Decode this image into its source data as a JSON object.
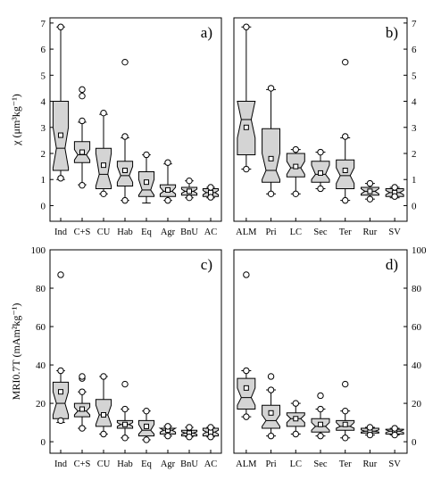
{
  "chart_data": [
    {
      "type": "box",
      "panel_label": "a)",
      "ylabel": "χ (μm³kg⁻¹)",
      "ylim": [
        -0.6,
        7.2
      ],
      "yticks": [
        0,
        1,
        2,
        3,
        4,
        5,
        6,
        7
      ],
      "categories": [
        "Ind",
        "C+S",
        "CU",
        "Hab",
        "Eq",
        "Agr",
        "BnU",
        "AC"
      ],
      "boxes": [
        {
          "q1": 1.35,
          "median": 2.2,
          "q3": 4.0,
          "mean": 2.7,
          "notch_lo": 1.45,
          "notch_hi": 3.0,
          "whisker_lo": 1.0,
          "whisker_hi": 6.85,
          "outliers": [
            1.05,
            6.85
          ]
        },
        {
          "q1": 1.65,
          "median": 1.95,
          "q3": 2.45,
          "mean": 2.05,
          "notch_lo": 1.75,
          "notch_hi": 2.15,
          "whisker_lo": 0.8,
          "whisker_hi": 3.2,
          "outliers": [
            0.78,
            3.25,
            4.2,
            4.45
          ]
        },
        {
          "q1": 0.65,
          "median": 1.2,
          "q3": 2.2,
          "mean": 1.55,
          "notch_lo": 0.75,
          "notch_hi": 2.0,
          "whisker_lo": 0.45,
          "whisker_hi": 3.5,
          "outliers": [
            0.45,
            3.55
          ]
        },
        {
          "q1": 0.75,
          "median": 1.15,
          "q3": 1.7,
          "mean": 1.35,
          "notch_lo": 0.9,
          "notch_hi": 1.5,
          "whisker_lo": 0.2,
          "whisker_hi": 2.6,
          "outliers": [
            0.2,
            2.65,
            5.5
          ]
        },
        {
          "q1": 0.35,
          "median": 0.6,
          "q3": 1.3,
          "mean": 0.9,
          "notch_lo": 0.4,
          "notch_hi": 1.0,
          "whisker_lo": 0.1,
          "whisker_hi": 1.95,
          "outliers": [
            1.95
          ]
        },
        {
          "q1": 0.35,
          "median": 0.55,
          "q3": 0.8,
          "mean": 0.6,
          "notch_lo": 0.45,
          "notch_hi": 0.7,
          "whisker_lo": 0.2,
          "whisker_hi": 1.6,
          "outliers": [
            1.65,
            0.2
          ]
        },
        {
          "q1": 0.4,
          "median": 0.55,
          "q3": 0.7,
          "mean": 0.55,
          "notch_lo": 0.47,
          "notch_hi": 0.63,
          "whisker_lo": 0.3,
          "whisker_hi": 0.95,
          "outliers": [
            0.95,
            0.3
          ]
        },
        {
          "q1": 0.35,
          "median": 0.5,
          "q3": 0.65,
          "mean": 0.5,
          "notch_lo": 0.42,
          "notch_hi": 0.58,
          "whisker_lo": 0.3,
          "whisker_hi": 0.7,
          "outliers": [
            0.7,
            0.32
          ]
        }
      ]
    },
    {
      "type": "box",
      "panel_label": "b)",
      "ylim": [
        -0.6,
        7.2
      ],
      "yticks": [
        0,
        1,
        2,
        3,
        4,
        5,
        6,
        7
      ],
      "categories": [
        "ALM",
        "Pri",
        "LC",
        "Sec",
        "Ter",
        "Rur",
        "SV"
      ],
      "boxes": [
        {
          "q1": 1.95,
          "median": 3.3,
          "q3": 4.0,
          "mean": 3.0,
          "notch_lo": 2.6,
          "notch_hi": 4.0,
          "whisker_lo": 1.4,
          "whisker_hi": 6.85,
          "outliers": [
            1.4,
            6.85
          ]
        },
        {
          "q1": 0.9,
          "median": 1.35,
          "q3": 2.95,
          "mean": 1.8,
          "notch_lo": 1.0,
          "notch_hi": 2.0,
          "whisker_lo": 0.45,
          "whisker_hi": 4.45,
          "outliers": [
            0.45,
            4.5
          ]
        },
        {
          "q1": 1.1,
          "median": 1.45,
          "q3": 2.0,
          "mean": 1.5,
          "notch_lo": 1.2,
          "notch_hi": 1.7,
          "whisker_lo": 0.45,
          "whisker_hi": 2.15,
          "outliers": [
            0.45,
            2.15
          ]
        },
        {
          "q1": 0.9,
          "median": 1.2,
          "q3": 1.7,
          "mean": 1.25,
          "notch_lo": 1.0,
          "notch_hi": 1.55,
          "whisker_lo": 0.65,
          "whisker_hi": 2.05,
          "outliers": [
            0.65,
            2.05
          ]
        },
        {
          "q1": 0.65,
          "median": 1.15,
          "q3": 1.75,
          "mean": 1.35,
          "notch_lo": 0.85,
          "notch_hi": 1.45,
          "whisker_lo": 0.2,
          "whisker_hi": 2.6,
          "outliers": [
            0.2,
            2.65,
            5.5
          ]
        },
        {
          "q1": 0.4,
          "median": 0.55,
          "q3": 0.7,
          "mean": 0.55,
          "notch_lo": 0.45,
          "notch_hi": 0.65,
          "whisker_lo": 0.25,
          "whisker_hi": 0.85,
          "outliers": [
            0.85,
            0.25
          ]
        },
        {
          "q1": 0.35,
          "median": 0.5,
          "q3": 0.65,
          "mean": 0.5,
          "notch_lo": 0.42,
          "notch_hi": 0.58,
          "whisker_lo": 0.3,
          "whisker_hi": 0.7,
          "outliers": [
            0.7,
            0.35
          ]
        }
      ]
    },
    {
      "type": "box",
      "panel_label": "c)",
      "ylabel": "MRI0.7T (mAm²kg⁻¹)",
      "ylim": [
        -6,
        100
      ],
      "yticks": [
        0,
        20,
        40,
        60,
        80,
        100
      ],
      "categories": [
        "Ind",
        "C+S",
        "CU",
        "Hab",
        "Eq",
        "Agr",
        "BnU",
        "AC"
      ],
      "boxes": [
        {
          "q1": 12,
          "median": 20,
          "q3": 31,
          "mean": 26,
          "notch_lo": 14,
          "notch_hi": 26,
          "whisker_lo": 10,
          "whisker_hi": 37,
          "outliers": [
            11,
            37,
            87
          ]
        },
        {
          "q1": 13,
          "median": 16,
          "q3": 20,
          "mean": 17,
          "notch_lo": 14,
          "notch_hi": 18,
          "whisker_lo": 7,
          "whisker_hi": 26,
          "outliers": [
            7,
            26,
            33,
            34
          ]
        },
        {
          "q1": 8,
          "median": 14,
          "q3": 22,
          "mean": 14,
          "notch_lo": 9,
          "notch_hi": 19,
          "whisker_lo": 4,
          "whisker_hi": 34,
          "outliers": [
            4,
            34
          ]
        },
        {
          "q1": 7,
          "median": 9,
          "q3": 11,
          "mean": 9,
          "notch_lo": 8,
          "notch_hi": 10,
          "whisker_lo": 2,
          "whisker_hi": 17,
          "outliers": [
            2,
            17,
            30
          ]
        },
        {
          "q1": 3,
          "median": 6,
          "q3": 11,
          "mean": 8,
          "notch_lo": 4,
          "notch_hi": 9,
          "whisker_lo": 1,
          "whisker_hi": 16,
          "outliers": [
            1,
            16
          ]
        },
        {
          "q1": 4,
          "median": 6,
          "q3": 7,
          "mean": 6,
          "notch_lo": 5,
          "notch_hi": 7,
          "whisker_lo": 3,
          "whisker_hi": 8,
          "outliers": [
            3,
            8
          ]
        },
        {
          "q1": 3,
          "median": 4.5,
          "q3": 6,
          "mean": 4.5,
          "notch_lo": 3.8,
          "notch_hi": 5.2,
          "whisker_lo": 2.5,
          "whisker_hi": 7.5,
          "outliers": [
            2.5,
            7.5
          ]
        },
        {
          "q1": 3,
          "median": 5,
          "q3": 7,
          "mean": 5,
          "notch_lo": 4,
          "notch_hi": 6,
          "whisker_lo": 2.5,
          "whisker_hi": 7.5,
          "outliers": [
            2.5,
            7.5
          ]
        }
      ]
    },
    {
      "type": "box",
      "panel_label": "d)",
      "ylim": [
        -6,
        100
      ],
      "yticks": [
        0,
        20,
        40,
        60,
        80,
        100
      ],
      "categories": [
        "ALM",
        "Pri",
        "LC",
        "Sec",
        "Ter",
        "Rur",
        "SV"
      ],
      "boxes": [
        {
          "q1": 17,
          "median": 23,
          "q3": 33,
          "mean": 28,
          "notch_lo": 19,
          "notch_hi": 28,
          "whisker_lo": 13,
          "whisker_hi": 37,
          "outliers": [
            13,
            37,
            87
          ]
        },
        {
          "q1": 7,
          "median": 11,
          "q3": 19,
          "mean": 15,
          "notch_lo": 8,
          "notch_hi": 14,
          "whisker_lo": 3,
          "whisker_hi": 27,
          "outliers": [
            3,
            27,
            34
          ]
        },
        {
          "q1": 8,
          "median": 12,
          "q3": 15,
          "mean": 12,
          "notch_lo": 10,
          "notch_hi": 14,
          "whisker_lo": 4,
          "whisker_hi": 20,
          "outliers": [
            4,
            20
          ]
        },
        {
          "q1": 5,
          "median": 8,
          "q3": 12,
          "mean": 9,
          "notch_lo": 6,
          "notch_hi": 10,
          "whisker_lo": 3,
          "whisker_hi": 17,
          "outliers": [
            3,
            17,
            24
          ]
        },
        {
          "q1": 6,
          "median": 8,
          "q3": 11,
          "mean": 9,
          "notch_lo": 7,
          "notch_hi": 10,
          "whisker_lo": 2,
          "whisker_hi": 16,
          "outliers": [
            2,
            16,
            30
          ]
        },
        {
          "q1": 4.5,
          "median": 5.5,
          "q3": 7,
          "mean": 5.5,
          "notch_lo": 5,
          "notch_hi": 6.2,
          "whisker_lo": 3.5,
          "whisker_hi": 7.5,
          "outliers": [
            3.5,
            7.5
          ]
        },
        {
          "q1": 4,
          "median": 5.5,
          "q3": 6.5,
          "mean": 5.5,
          "notch_lo": 4.8,
          "notch_hi": 6.2,
          "whisker_lo": 3.5,
          "whisker_hi": 7,
          "outliers": [
            3.5,
            7
          ]
        }
      ]
    }
  ],
  "colors": {
    "box_fill": "#d4d4d4",
    "stroke": "#000000"
  }
}
